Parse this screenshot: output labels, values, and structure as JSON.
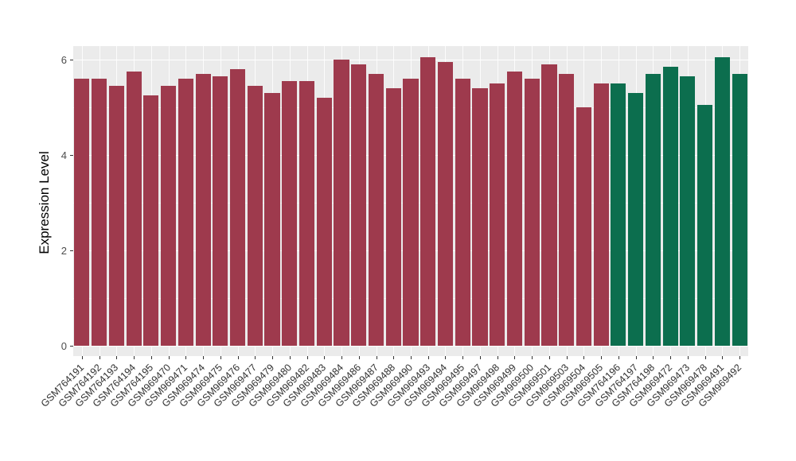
{
  "chart_data": {
    "type": "bar",
    "title": "",
    "xlabel": "",
    "ylabel": "Expression Level",
    "ylim": [
      0,
      6.3
    ],
    "yticks": [
      0,
      2,
      4,
      6
    ],
    "yticks_minor": [
      1,
      3,
      5
    ],
    "grid": true,
    "legend": "none",
    "panel_background": "#ebebeb",
    "colors": {
      "groupA": "#9e3a4d",
      "groupB": "#0c6e4e"
    },
    "bars": [
      {
        "label": "GSM764191",
        "value": 5.6,
        "group": "groupA"
      },
      {
        "label": "GSM764192",
        "value": 5.6,
        "group": "groupA"
      },
      {
        "label": "GSM764193",
        "value": 5.45,
        "group": "groupA"
      },
      {
        "label": "GSM764194",
        "value": 5.75,
        "group": "groupA"
      },
      {
        "label": "GSM764195",
        "value": 5.25,
        "group": "groupA"
      },
      {
        "label": "GSM969470",
        "value": 5.45,
        "group": "groupA"
      },
      {
        "label": "GSM969471",
        "value": 5.6,
        "group": "groupA"
      },
      {
        "label": "GSM969474",
        "value": 5.7,
        "group": "groupA"
      },
      {
        "label": "GSM969475",
        "value": 5.65,
        "group": "groupA"
      },
      {
        "label": "GSM969476",
        "value": 5.8,
        "group": "groupA"
      },
      {
        "label": "GSM969477",
        "value": 5.45,
        "group": "groupA"
      },
      {
        "label": "GSM969479",
        "value": 5.3,
        "group": "groupA"
      },
      {
        "label": "GSM969480",
        "value": 5.55,
        "group": "groupA"
      },
      {
        "label": "GSM969482",
        "value": 5.55,
        "group": "groupA"
      },
      {
        "label": "GSM969483",
        "value": 5.2,
        "group": "groupA"
      },
      {
        "label": "GSM969484",
        "value": 6.0,
        "group": "groupA"
      },
      {
        "label": "GSM969486",
        "value": 5.9,
        "group": "groupA"
      },
      {
        "label": "GSM969487",
        "value": 5.7,
        "group": "groupA"
      },
      {
        "label": "GSM969488",
        "value": 5.4,
        "group": "groupA"
      },
      {
        "label": "GSM969490",
        "value": 5.6,
        "group": "groupA"
      },
      {
        "label": "GSM969493",
        "value": 6.05,
        "group": "groupA"
      },
      {
        "label": "GSM969494",
        "value": 5.95,
        "group": "groupA"
      },
      {
        "label": "GSM969495",
        "value": 5.6,
        "group": "groupA"
      },
      {
        "label": "GSM969497",
        "value": 5.4,
        "group": "groupA"
      },
      {
        "label": "GSM969498",
        "value": 5.5,
        "group": "groupA"
      },
      {
        "label": "GSM969499",
        "value": 5.75,
        "group": "groupA"
      },
      {
        "label": "GSM969500",
        "value": 5.6,
        "group": "groupA"
      },
      {
        "label": "GSM969501",
        "value": 5.9,
        "group": "groupA"
      },
      {
        "label": "GSM969503",
        "value": 5.7,
        "group": "groupA"
      },
      {
        "label": "GSM969504",
        "value": 5.0,
        "group": "groupA"
      },
      {
        "label": "GSM969505",
        "value": 5.5,
        "group": "groupA"
      },
      {
        "label": "GSM764196",
        "value": 5.5,
        "group": "groupB"
      },
      {
        "label": "GSM764197",
        "value": 5.3,
        "group": "groupB"
      },
      {
        "label": "GSM764198",
        "value": 5.7,
        "group": "groupB"
      },
      {
        "label": "GSM969472",
        "value": 5.85,
        "group": "groupB"
      },
      {
        "label": "GSM969473",
        "value": 5.65,
        "group": "groupB"
      },
      {
        "label": "GSM969478",
        "value": 5.05,
        "group": "groupB"
      },
      {
        "label": "GSM969491",
        "value": 6.05,
        "group": "groupB"
      },
      {
        "label": "GSM969492",
        "value": 5.7,
        "group": "groupB"
      }
    ]
  }
}
